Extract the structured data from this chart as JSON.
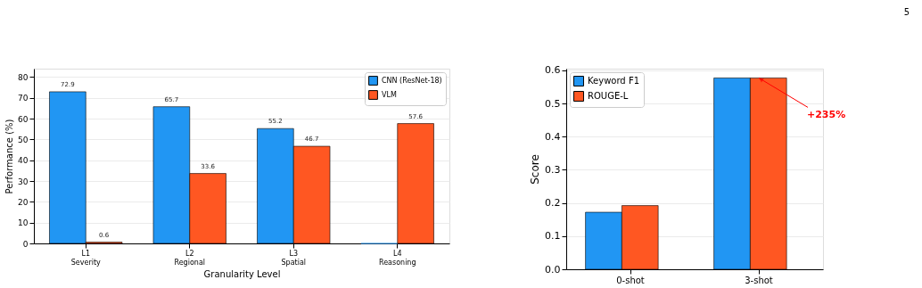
{
  "chart_data": [
    {
      "type": "bar",
      "xlabel": "Granularity Level",
      "ylabel": "Performance (%)",
      "categories": [
        "L1\nSeverity",
        "L2\nRegional",
        "L3\nSpatial",
        "L4\nReasoning"
      ],
      "series": [
        {
          "name": "CNN (ResNet-18)",
          "color": "#2196f3",
          "values": [
            72.9,
            65.7,
            55.2,
            0
          ],
          "value_labels": [
            "72.9",
            "65.7",
            "55.2",
            null
          ]
        },
        {
          "name": "VLM",
          "color": "#ff5722",
          "values": [
            0.6,
            33.6,
            46.7,
            57.6
          ],
          "value_labels": [
            "0.6",
            "33.6",
            "46.7",
            "57.6"
          ]
        }
      ],
      "ylim": [
        0,
        84
      ],
      "yticks": [
        0,
        10,
        20,
        30,
        40,
        50,
        60,
        70,
        80
      ],
      "grid": "y",
      "legend": "top right"
    },
    {
      "type": "bar",
      "ylabel": "Score",
      "categories": [
        "0-shot",
        "3-shot"
      ],
      "series": [
        {
          "name": "Keyword F1",
          "color": "#2196f3",
          "values": [
            0.172,
            0.577
          ]
        },
        {
          "name": "ROUGE-L",
          "color": "#ff5722",
          "values": [
            0.192,
            0.577
          ]
        }
      ],
      "ylim": [
        0,
        0.605
      ],
      "yticks": [
        {
          "value": 0,
          "label": "0.0"
        },
        0.1,
        0.2,
        0.3,
        0.4,
        0.5,
        0.6
      ],
      "grid": "y",
      "legend": "top left",
      "annotations": [
        {
          "text": "+235%",
          "x": "3-shot",
          "y": 0.577
        },
        "5"
      ]
    }
  ]
}
